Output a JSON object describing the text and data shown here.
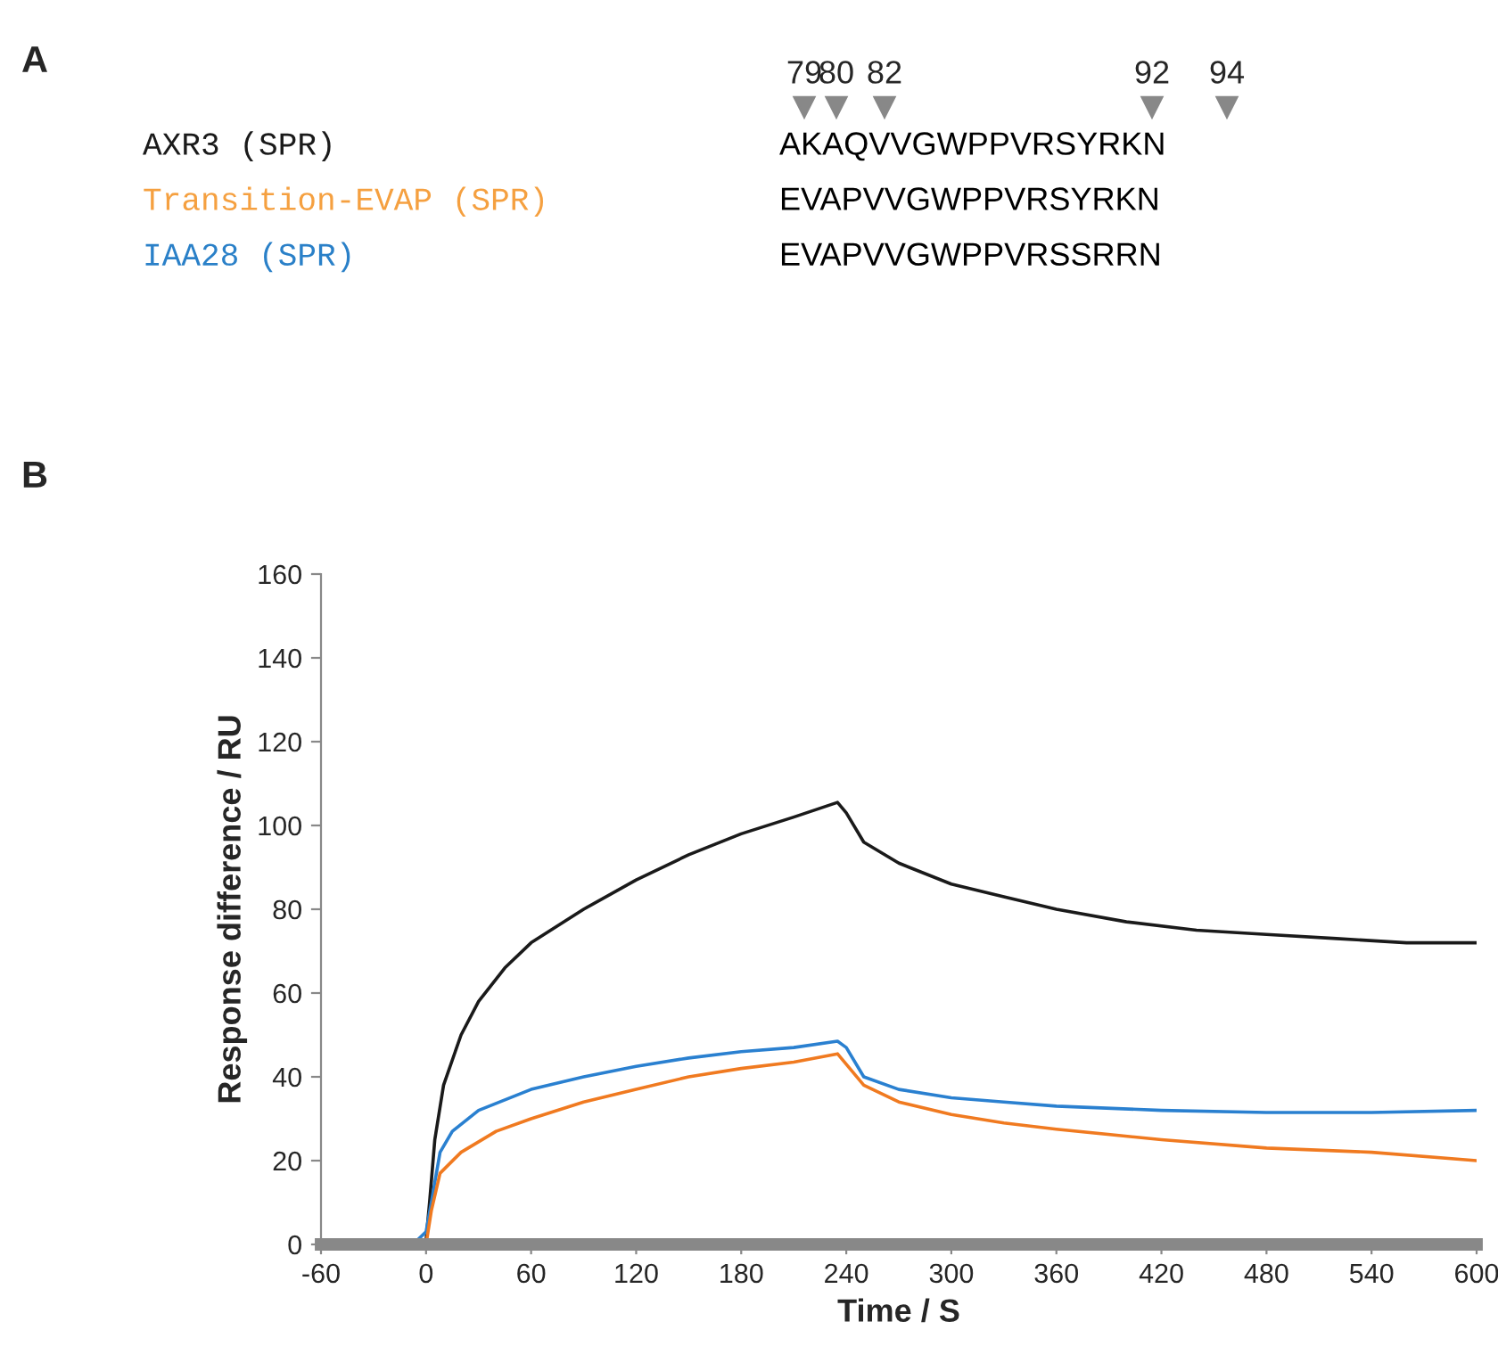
{
  "chart_data": [
    {
      "type": "other",
      "title": "A",
      "categories": [
        "AXR3 (SPR)",
        "Transition-EVAP (SPR)",
        "IAA28 (SPR)"
      ],
      "colors": [
        "#1a1a1a",
        "#f5a040",
        "#2a80c8"
      ],
      "annotations": [
        "79",
        "80",
        "82",
        "92",
        "94",
        "AKAQVVGWPPVRSYRKN",
        "EVAPVVGWPPVRSYRKN",
        "EVAPVVGWPPVRSSRRN"
      ]
    },
    {
      "type": "line",
      "title": "B",
      "xlabel": "Time / S",
      "ylabel": "Response difference / RU",
      "xlim": [
        -60,
        600
      ],
      "xticks": [
        -60,
        0,
        60,
        120,
        180,
        240,
        300,
        360,
        420,
        480,
        540,
        600
      ],
      "ylim": [
        0,
        160
      ],
      "yticks": [
        0,
        20,
        40,
        60,
        80,
        100,
        120,
        140,
        160
      ],
      "grid": false,
      "legend": false,
      "series": [
        {
          "color": "#1a1a1a",
          "x": [
            -20,
            0,
            2,
            5,
            10,
            20,
            30,
            45,
            60,
            90,
            120,
            150,
            180,
            210,
            235,
            240,
            250,
            270,
            300,
            330,
            360,
            400,
            440,
            480,
            520,
            560,
            600
          ],
          "values": [
            1,
            1,
            10,
            25,
            38,
            50,
            58,
            66,
            72,
            80,
            87,
            93,
            98,
            102,
            105.5,
            103,
            96,
            91,
            86,
            83,
            80,
            77,
            75,
            74,
            73,
            72,
            72
          ]
        },
        {
          "color": "#2a80d0",
          "x": [
            -5,
            0,
            3,
            8,
            15,
            30,
            60,
            90,
            120,
            150,
            180,
            210,
            235,
            240,
            250,
            270,
            300,
            330,
            360,
            420,
            480,
            540,
            600
          ],
          "values": [
            1,
            3,
            10,
            22,
            27,
            32,
            37,
            40,
            42.5,
            44.5,
            46,
            47,
            48.5,
            47,
            40,
            37,
            35,
            34,
            33,
            32,
            31.5,
            31.5,
            32
          ]
        },
        {
          "color": "#f07a20",
          "x": [
            0,
            3,
            8,
            20,
            40,
            60,
            90,
            120,
            150,
            180,
            210,
            235,
            240,
            250,
            270,
            300,
            330,
            360,
            420,
            480,
            540,
            600
          ],
          "values": [
            0,
            8,
            17,
            22,
            27,
            30,
            34,
            37,
            40,
            42,
            43.5,
            45.5,
            43,
            38,
            34,
            31,
            29,
            27.5,
            25,
            23,
            22,
            20
          ]
        }
      ]
    }
  ]
}
